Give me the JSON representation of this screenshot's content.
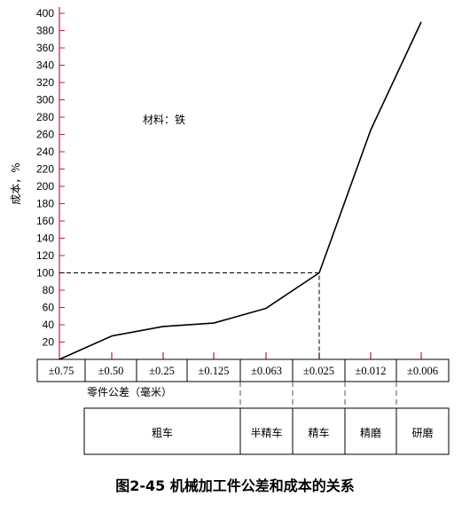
{
  "chart_data": {
    "type": "line",
    "title": "图2-45 机械加工件公差和成本的关系",
    "ylabel": "成本，%",
    "xlabel": "零件公差（毫米）",
    "annotation": "材料：铁",
    "categories": [
      "±0.75",
      "±0.50",
      "±0.25",
      "±0.125",
      "±0.063",
      "±0.025",
      "±0.012",
      "±0.006"
    ],
    "values": [
      0,
      27,
      38,
      42,
      59,
      100,
      265,
      390
    ],
    "ylim": [
      0,
      400
    ],
    "yticks": [
      "20",
      "40",
      "60",
      "80",
      "100",
      "120",
      "140",
      "160",
      "180",
      "200",
      "220",
      "240",
      "260",
      "280",
      "300",
      "320",
      "340",
      "360",
      "380",
      "400"
    ],
    "processes": [
      {
        "name": "粗车",
        "from": 0,
        "to": 3
      },
      {
        "name": "半精车",
        "from": 4,
        "to": 4
      },
      {
        "name": "精车",
        "from": 5,
        "to": 5
      },
      {
        "name": "精磨",
        "from": 6,
        "to": 6
      },
      {
        "name": "研磨",
        "from": 7,
        "to": 7
      }
    ],
    "reference_value": 100,
    "reference_category": 5,
    "colors": {
      "axis": "#c2185b",
      "line": "#000000"
    },
    "grid": false
  }
}
